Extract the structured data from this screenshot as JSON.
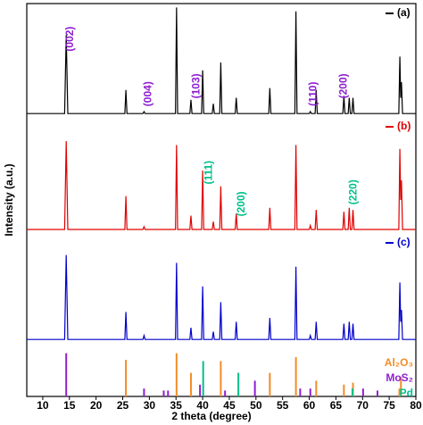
{
  "chart_data": {
    "type": "line",
    "x_label": "2 theta (degree)",
    "y_label": "Intensity (a.u.)",
    "xlim": [
      7,
      80
    ],
    "xticks": [
      10,
      15,
      20,
      25,
      30,
      35,
      40,
      45,
      50,
      55,
      60,
      65,
      70,
      75,
      80
    ],
    "ylim": [
      0,
      100
    ],
    "x": [
      7,
      14.1,
      14.4,
      14.7,
      25.4,
      25.6,
      25.8,
      28.8,
      29.0,
      29.2,
      34.9,
      35.1,
      35.3,
      37.6,
      37.8,
      38.0,
      39.8,
      40.0,
      40.2,
      41.8,
      42.0,
      42.2,
      43.2,
      43.4,
      43.6,
      46.1,
      46.3,
      46.5,
      52.4,
      52.6,
      52.8,
      57.3,
      57.5,
      57.7,
      60.0,
      60.2,
      60.4,
      61.1,
      61.3,
      61.5,
      66.3,
      66.5,
      66.7,
      67.3,
      67.5,
      67.7,
      68.0,
      68.2,
      68.4,
      76.8,
      77.0,
      77.15,
      77.3,
      77.5,
      80
    ],
    "series": [
      {
        "name": "(a)",
        "color": "#000000",
        "values": [
          72,
          72,
          92,
          72,
          72,
          78,
          72,
          72,
          72.5,
          72,
          72,
          99,
          72,
          72,
          75.5,
          72,
          72,
          83,
          72,
          72,
          74.5,
          72,
          72,
          85,
          72,
          72,
          76,
          72,
          72,
          78.5,
          72,
          72,
          98,
          72,
          72,
          72.5,
          72,
          72,
          78,
          72,
          72,
          76.5,
          72,
          72,
          76,
          72,
          72,
          76,
          72,
          72,
          86.5,
          76,
          80,
          72,
          72
        ]
      },
      {
        "name": "(b)",
        "color": "#e00000",
        "values": [
          42.5,
          42.5,
          65,
          42.5,
          42.5,
          51,
          42.5,
          42.5,
          43.2,
          42.5,
          42.5,
          64,
          42.5,
          42.5,
          46,
          42.5,
          42.5,
          57.5,
          42.5,
          42.5,
          44.5,
          42.5,
          42.5,
          53.5,
          42.5,
          42.5,
          46.5,
          42.5,
          42.5,
          48,
          42.5,
          42.5,
          64,
          42.5,
          42.5,
          43.5,
          42.5,
          42.5,
          47.5,
          42.5,
          42.5,
          47,
          42.5,
          42.5,
          48,
          42.5,
          42.5,
          47.5,
          42.5,
          42.5,
          63,
          50,
          55,
          42.5,
          42.5
        ]
      },
      {
        "name": "(c)",
        "color": "#0000cc",
        "values": [
          14.5,
          14.5,
          36,
          14.5,
          14.5,
          21.5,
          14.5,
          14.5,
          15.5,
          14.5,
          14.5,
          34,
          14.5,
          14.5,
          17.5,
          14.5,
          14.5,
          28,
          14.5,
          14.5,
          16.5,
          14.5,
          14.5,
          24,
          14.5,
          14.5,
          19,
          14.5,
          14.5,
          20,
          14.5,
          14.5,
          33,
          14.5,
          14.5,
          15.5,
          14.5,
          14.5,
          19,
          14.5,
          14.5,
          18.5,
          14.5,
          14.5,
          19,
          14.5,
          14.5,
          18.5,
          14.5,
          14.5,
          29,
          19,
          22,
          14.5,
          14.5
        ]
      }
    ],
    "references": [
      {
        "name": "Al₂O₃",
        "color": "#f28c28",
        "x": [
          25.6,
          35.1,
          37.8,
          43.4,
          52.6,
          57.5,
          61.3,
          66.5,
          68.2,
          76.9,
          77.2
        ],
        "values": [
          9.3,
          11,
          6,
          9,
          6,
          10,
          4,
          3,
          3.5,
          2,
          5
        ]
      },
      {
        "name": "MoS₂",
        "color": "#8e1fd0",
        "x": [
          14.4,
          29.0,
          32.7,
          33.5,
          39.5,
          44.2,
          49.8,
          58.3,
          60.2,
          70.1,
          72.8
        ],
        "values": [
          11,
          2,
          1.5,
          1.5,
          3,
          1.5,
          4,
          2,
          2,
          2,
          1.5
        ]
      },
      {
        "name": "Pd",
        "color": "#00c08b",
        "x": [
          40.1,
          46.7,
          68.1
        ],
        "values": [
          9,
          6,
          2
        ]
      }
    ],
    "annotations": [
      {
        "text": "(002)",
        "x": 15.2,
        "y": 91,
        "color": "#8e1fd0"
      },
      {
        "text": "(004)",
        "x": 29.8,
        "y": 77,
        "color": "#8e1fd0"
      },
      {
        "text": "(103)",
        "x": 38.9,
        "y": 79,
        "color": "#8e1fd0"
      },
      {
        "text": "(110)",
        "x": 60.8,
        "y": 77,
        "color": "#8e1fd0"
      },
      {
        "text": "(200)",
        "x": 66.5,
        "y": 79,
        "color": "#8e1fd0"
      },
      {
        "text": "(111)",
        "x": 41.2,
        "y": 57,
        "color": "#00c08b"
      },
      {
        "text": "(200)",
        "x": 47.3,
        "y": 49,
        "color": "#00c08b"
      },
      {
        "text": "(220)",
        "x": 68.3,
        "y": 52,
        "color": "#00c08b"
      }
    ]
  }
}
